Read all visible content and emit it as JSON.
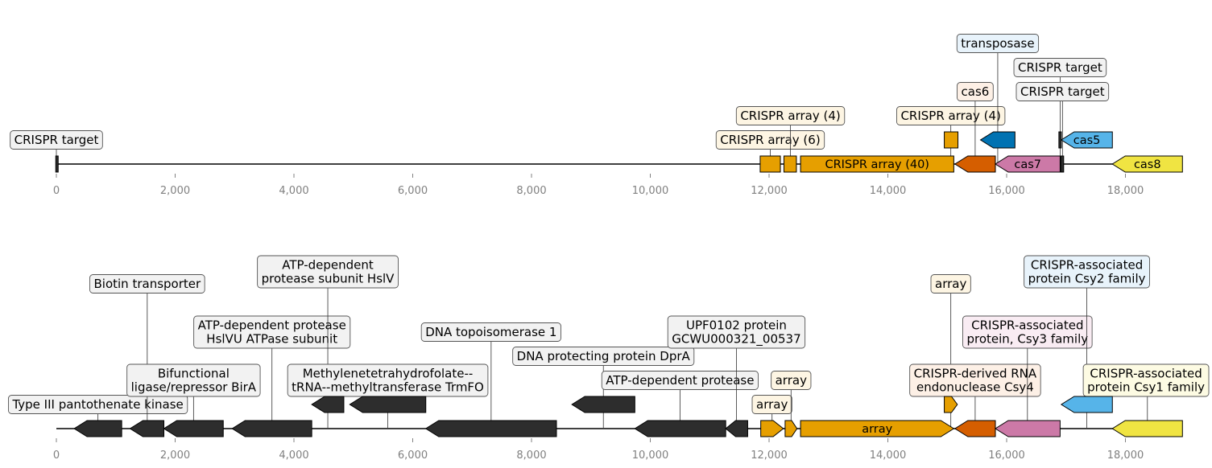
{
  "colors": {
    "array_orange": "#E69F00",
    "cas6_orange": "#D55E00",
    "cas7_pink": "#CC79A7",
    "cas5_sky": "#56B4E9",
    "cas8_yellow": "#F0E442",
    "transposase_blue": "#0072B2",
    "dark_gene": "#2d2d2d",
    "box_gray": "#f2f2f2",
    "box_cream": "#fdf5e3",
    "box_peach": "#fdf0e6",
    "box_lightblue": "#e8f3fb",
    "box_pink": "#f9ecf3",
    "box_lightyellow": "#fdfbe3"
  },
  "tracks": [
    {
      "ticks": [
        "0",
        "2,000",
        "4,000",
        "6,000",
        "8,000",
        "10,000",
        "12,000",
        "14,000",
        "16,000",
        "18,000"
      ],
      "features": [
        {
          "start": 0,
          "end": 18960,
          "kind": "line"
        },
        {
          "start": 0,
          "end": 20,
          "strand": 0,
          "color": "dark_gene"
        },
        {
          "start": 11850,
          "end": 12190,
          "strand": 0,
          "color": "array_orange"
        },
        {
          "start": 12250,
          "end": 12460,
          "strand": 0,
          "color": "array_orange"
        },
        {
          "start": 12530,
          "end": 15110,
          "strand": 0,
          "color": "array_orange",
          "label": "CRISPR array (40)"
        },
        {
          "start": 14950,
          "end": 15180,
          "strand": 0,
          "color": "array_orange",
          "upper": true
        },
        {
          "start": 15130,
          "end": 15810,
          "strand": -1,
          "color": "cas6_orange"
        },
        {
          "start": 15560,
          "end": 16140,
          "strand": -1,
          "color": "transposase_blue",
          "upper": true
        },
        {
          "start": 15810,
          "end": 16900,
          "strand": -1,
          "color": "cas7_pink",
          "label": "cas7"
        },
        {
          "start": 16910,
          "end": 16960,
          "strand": 0,
          "color": "dark_gene"
        },
        {
          "start": 16880,
          "end": 16920,
          "strand": 0,
          "color": "dark_gene",
          "upper": true
        },
        {
          "start": 16920,
          "end": 17780,
          "strand": -1,
          "color": "cas5_sky",
          "upper": true,
          "label": "cas5"
        },
        {
          "start": 17780,
          "end": 18960,
          "strand": -1,
          "color": "cas8_yellow",
          "label": "cas8"
        }
      ],
      "callouts": [
        {
          "lines": [
            "CRISPR target"
          ],
          "pos": 0,
          "box": "box_gray"
        },
        {
          "lines": [
            "CRISPR array (6)"
          ],
          "pos": 12020,
          "box": "box_cream"
        },
        {
          "lines": [
            "CRISPR array (4)"
          ],
          "pos": 12360,
          "box": "box_cream"
        },
        {
          "lines": [
            "CRISPR array (4)"
          ],
          "pos": 15060,
          "box": "box_cream"
        },
        {
          "lines": [
            "cas6"
          ],
          "pos": 15470,
          "box": "box_peach"
        },
        {
          "lines": [
            "transposase"
          ],
          "pos": 15850,
          "box": "box_lightblue"
        },
        {
          "lines": [
            "CRISPR target"
          ],
          "pos": 16900,
          "box": "box_gray"
        },
        {
          "lines": [
            "CRISPR target"
          ],
          "pos": 16940,
          "box": "box_gray"
        }
      ]
    },
    {
      "ticks": [
        "0",
        "2,000",
        "4,000",
        "6,000",
        "8,000",
        "10,000",
        "12,000",
        "14,000",
        "16,000",
        "18,000"
      ],
      "features": [
        {
          "start": 0,
          "end": 18960,
          "kind": "line"
        },
        {
          "start": 300,
          "end": 1100,
          "strand": -1,
          "color": "dark_gene"
        },
        {
          "start": 1240,
          "end": 1810,
          "strand": -1,
          "color": "dark_gene"
        },
        {
          "start": 1810,
          "end": 2810,
          "strand": -1,
          "color": "dark_gene"
        },
        {
          "start": 2960,
          "end": 4300,
          "strand": -1,
          "color": "dark_gene"
        },
        {
          "start": 4300,
          "end": 4840,
          "strand": -1,
          "color": "dark_gene",
          "upper": true
        },
        {
          "start": 4940,
          "end": 6220,
          "strand": -1,
          "color": "dark_gene",
          "upper": true
        },
        {
          "start": 6220,
          "end": 8420,
          "strand": -1,
          "color": "dark_gene"
        },
        {
          "start": 8680,
          "end": 9740,
          "strand": -1,
          "color": "dark_gene",
          "upper": true
        },
        {
          "start": 9740,
          "end": 11270,
          "strand": -1,
          "color": "dark_gene"
        },
        {
          "start": 11270,
          "end": 11640,
          "strand": -1,
          "color": "dark_gene"
        },
        {
          "start": 11860,
          "end": 12240,
          "strand": 1,
          "color": "array_orange"
        },
        {
          "start": 12270,
          "end": 12470,
          "strand": 1,
          "color": "array_orange"
        },
        {
          "start": 12530,
          "end": 15110,
          "strand": 1,
          "color": "array_orange",
          "label": "array"
        },
        {
          "start": 14950,
          "end": 15170,
          "strand": 1,
          "color": "array_orange",
          "upper": true
        },
        {
          "start": 15130,
          "end": 15810,
          "strand": -1,
          "color": "cas6_orange"
        },
        {
          "start": 15810,
          "end": 16900,
          "strand": -1,
          "color": "cas7_pink"
        },
        {
          "start": 16920,
          "end": 17780,
          "strand": -1,
          "color": "cas5_sky",
          "upper": true
        },
        {
          "start": 17780,
          "end": 18960,
          "strand": -1,
          "color": "cas8_yellow"
        }
      ],
      "callouts": [
        {
          "lines": [
            "Type III pantothenate kinase"
          ],
          "pos": 700,
          "box": "box_gray"
        },
        {
          "lines": [
            "Biotin transporter"
          ],
          "pos": 1530,
          "box": "box_gray"
        },
        {
          "lines": [
            "Bifunctional",
            "ligase/repressor BirA"
          ],
          "pos": 2310,
          "box": "box_gray"
        },
        {
          "lines": [
            "ATP-dependent protease",
            "HslVU ATPase subunit"
          ],
          "pos": 3630,
          "box": "box_gray"
        },
        {
          "lines": [
            "ATP-dependent",
            "protease subunit HslV"
          ],
          "pos": 4570,
          "box": "box_gray"
        },
        {
          "lines": [
            "Methylenetetrahydrofolate--",
            "tRNA--methyltransferase TrmFO"
          ],
          "pos": 5580,
          "box": "box_gray"
        },
        {
          "lines": [
            "DNA topoisomerase 1"
          ],
          "pos": 7320,
          "box": "box_gray"
        },
        {
          "lines": [
            "DNA protecting protein DprA"
          ],
          "pos": 9210,
          "box": "box_gray"
        },
        {
          "lines": [
            "ATP-dependent protease"
          ],
          "pos": 10500,
          "box": "box_gray"
        },
        {
          "lines": [
            "UPF0102 protein",
            "GCWU000321_00537"
          ],
          "pos": 11450,
          "box": "box_gray"
        },
        {
          "lines": [
            "array"
          ],
          "pos": 12050,
          "box": "box_cream"
        },
        {
          "lines": [
            "array"
          ],
          "pos": 12370,
          "box": "box_cream"
        },
        {
          "lines": [
            "array"
          ],
          "pos": 15060,
          "box": "box_cream"
        },
        {
          "lines": [
            "CRISPR-derived RNA",
            "endonuclease Csy4"
          ],
          "pos": 15470,
          "box": "box_peach"
        },
        {
          "lines": [
            "CRISPR-associated",
            "protein, Csy3 family"
          ],
          "pos": 16350,
          "box": "box_pink"
        },
        {
          "lines": [
            "CRISPR-associated",
            "protein Csy2 family"
          ],
          "pos": 17350,
          "box": "box_lightblue"
        },
        {
          "lines": [
            "CRISPR-associated",
            "protein Csy1 family"
          ],
          "pos": 18370,
          "box": "box_lightyellow"
        }
      ]
    }
  ]
}
